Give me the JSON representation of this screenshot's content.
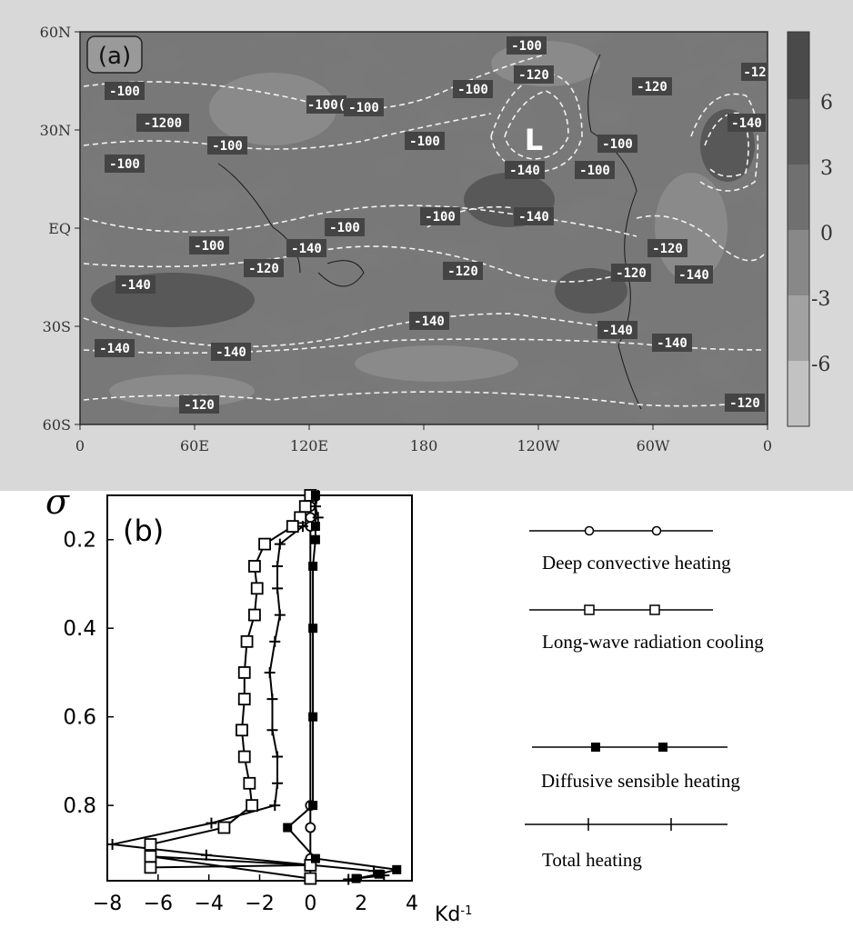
{
  "chart_data": [
    {
      "type": "heatmap",
      "panel_label": "(a)",
      "x_ticks": [
        "0",
        "60E",
        "120E",
        "180",
        "120W",
        "60W",
        "0"
      ],
      "y_ticks": [
        "60N",
        "30N",
        "EQ",
        "30S",
        "60S"
      ],
      "colorbar_ticks": [
        "6",
        "3",
        "0",
        "-3",
        "-6"
      ],
      "contour_labels": [
        "-100",
        "-120",
        "-140",
        "-1200",
        "-100(",
        "-12"
      ],
      "center_marker": "L",
      "colors": {
        "background": "#5e5e5e",
        "contour": "#f2f2f2",
        "label_bg": "#444444"
      }
    },
    {
      "type": "line",
      "panel_label": "(b)",
      "ylabel": "σ",
      "xlabel_unit": "Kd-1",
      "xlim": [
        -8,
        4
      ],
      "ylim": [
        0.1,
        0.97
      ],
      "y_inverted": true,
      "x_ticks": [
        "−8",
        "−6",
        "−4",
        "−2",
        "0",
        "2",
        "4"
      ],
      "y_ticks": [
        "0.2",
        "0.4",
        "0.6",
        "0.8"
      ],
      "y_tick_values": [
        0.2,
        0.4,
        0.6,
        0.8
      ],
      "x_tick_values": [
        -8,
        -6,
        -4,
        -2,
        0,
        2,
        4
      ],
      "series": [
        {
          "name": "Deep convective heating",
          "marker": "open-circle",
          "points": [
            [
              0,
              0.1
            ],
            [
              0,
              0.125
            ],
            [
              0,
              0.15
            ],
            [
              0,
              0.17
            ],
            [
              0,
              0.8
            ],
            [
              0,
              0.85
            ],
            [
              0,
              0.92
            ],
            [
              0,
              0.935
            ],
            [
              0,
              0.965
            ]
          ]
        },
        {
          "name": "Long-wave radiation cooling",
          "marker": "open-square",
          "points": [
            [
              0,
              0.1
            ],
            [
              -0.2,
              0.125
            ],
            [
              -0.4,
              0.15
            ],
            [
              -0.7,
              0.17
            ],
            [
              -1.8,
              0.21
            ],
            [
              -2.2,
              0.26
            ],
            [
              -2.1,
              0.31
            ],
            [
              -2.2,
              0.37
            ],
            [
              -2.5,
              0.43
            ],
            [
              -2.6,
              0.5
            ],
            [
              -2.6,
              0.56
            ],
            [
              -2.7,
              0.63
            ],
            [
              -2.6,
              0.69
            ],
            [
              -2.4,
              0.75
            ],
            [
              -2.3,
              0.8
            ],
            [
              -3.4,
              0.85
            ],
            [
              -6.3,
              0.888
            ],
            [
              -6.3,
              0.94
            ],
            [
              0,
              0.935
            ],
            [
              -6.3,
              0.915
            ],
            [
              0,
              0.965
            ]
          ]
        },
        {
          "name": "Diffusive sensible heating",
          "marker": "filled-square",
          "points": [
            [
              0.2,
              0.1
            ],
            [
              0.2,
              0.17
            ],
            [
              0.2,
              0.2
            ],
            [
              0.1,
              0.26
            ],
            [
              0.1,
              0.4
            ],
            [
              0.1,
              0.6
            ],
            [
              0.1,
              0.8
            ],
            [
              -0.9,
              0.85
            ],
            [
              0.2,
              0.92
            ],
            [
              3.4,
              0.945
            ],
            [
              2.7,
              0.955
            ],
            [
              1.8,
              0.965
            ]
          ]
        },
        {
          "name": "Total heating",
          "marker": "cross",
          "points": [
            [
              0.3,
              0.1
            ],
            [
              0.2,
              0.125
            ],
            [
              0.3,
              0.15
            ],
            [
              -0.3,
              0.17
            ],
            [
              -1.2,
              0.21
            ],
            [
              -1.3,
              0.26
            ],
            [
              -1.3,
              0.31
            ],
            [
              -1.2,
              0.37
            ],
            [
              -1.4,
              0.43
            ],
            [
              -1.6,
              0.5
            ],
            [
              -1.5,
              0.56
            ],
            [
              -1.5,
              0.63
            ],
            [
              -1.3,
              0.69
            ],
            [
              -1.3,
              0.75
            ],
            [
              -1.4,
              0.8
            ],
            [
              -3.9,
              0.84
            ],
            [
              -7.8,
              0.888
            ],
            [
              -4.1,
              0.912
            ],
            [
              2.5,
              0.948
            ],
            [
              2.9,
              0.958
            ],
            [
              1.5,
              0.967
            ]
          ]
        }
      ]
    }
  ]
}
